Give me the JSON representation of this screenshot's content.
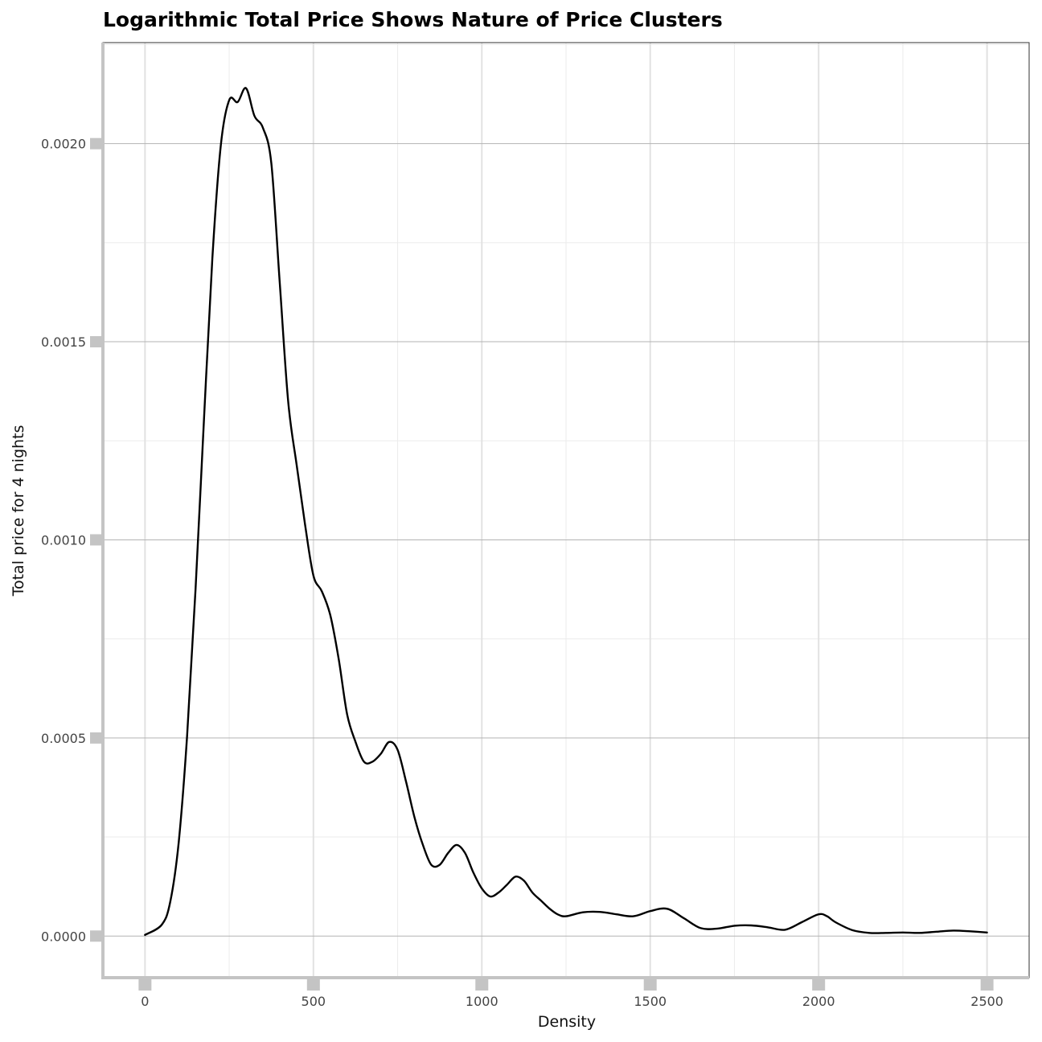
{
  "chart_data": {
    "type": "line",
    "title": "Logarithmic Total Price Shows Nature of Price Clusters",
    "xlabel": "Density",
    "ylabel": "Total price for 4 nights",
    "xlim": [
      -125,
      2625
    ],
    "ylim": [
      -0.000105,
      0.002255
    ],
    "x_ticks": [
      0,
      500,
      1000,
      1500,
      2000,
      2500
    ],
    "x_tick_labels": [
      "0",
      "500",
      "1000",
      "1500",
      "2000",
      "2500"
    ],
    "y_ticks": [
      0.0,
      0.0005,
      0.001,
      0.0015,
      0.002
    ],
    "y_tick_labels": [
      "0.0000",
      "0.0005",
      "0.0010",
      "0.0015",
      "0.0020"
    ],
    "grid": true,
    "legend": "none",
    "series": [
      {
        "color": "#000000",
        "x": [
          0,
          50,
          75,
          100,
          125,
          150,
          175,
          200,
          225,
          250,
          275,
          300,
          325,
          350,
          375,
          400,
          425,
          450,
          475,
          500,
          525,
          550,
          575,
          600,
          625,
          650,
          675,
          700,
          725,
          750,
          775,
          800,
          825,
          850,
          875,
          900,
          925,
          950,
          975,
          1000,
          1025,
          1050,
          1075,
          1100,
          1125,
          1150,
          1175,
          1200,
          1225,
          1250,
          1300,
          1350,
          1400,
          1450,
          1500,
          1550,
          1600,
          1650,
          1700,
          1750,
          1800,
          1850,
          1900,
          1950,
          2000,
          2025,
          2050,
          2100,
          2150,
          2200,
          2250,
          2300,
          2350,
          2400,
          2450,
          2500
        ],
        "y": [
          3e-06,
          2.9e-05,
          8.7e-05,
          0.000237,
          0.000505,
          0.000875,
          0.001304,
          0.00171,
          0.001995,
          0.00211,
          0.002105,
          0.00214,
          0.00207,
          0.00204,
          0.00195,
          0.00165,
          0.00135,
          0.00119,
          0.00104,
          0.00091,
          0.00087,
          0.00081,
          0.0007,
          0.00056,
          0.00049,
          0.00044,
          0.00044,
          0.00046,
          0.00049,
          0.00047,
          0.00039,
          0.0003,
          0.00023,
          0.00018,
          0.00018,
          0.00021,
          0.00023,
          0.00021,
          0.00016,
          0.00012,
          0.0001,
          0.00011,
          0.00013,
          0.00015,
          0.00014,
          0.00011,
          9e-05,
          7e-05,
          5.5e-05,
          5e-05,
          6e-05,
          6.1e-05,
          5.5e-05,
          5e-05,
          6.3e-05,
          6.9e-05,
          4.5e-05,
          2e-05,
          1.9e-05,
          2.6e-05,
          2.7e-05,
          2.2e-05,
          1.6e-05,
          3.5e-05,
          5.5e-05,
          5e-05,
          3.5e-05,
          1.5e-05,
          8e-06,
          8e-06,
          9e-06,
          8e-06,
          1.1e-05,
          1.4e-05,
          1.2e-05,
          9e-06
        ]
      }
    ]
  }
}
